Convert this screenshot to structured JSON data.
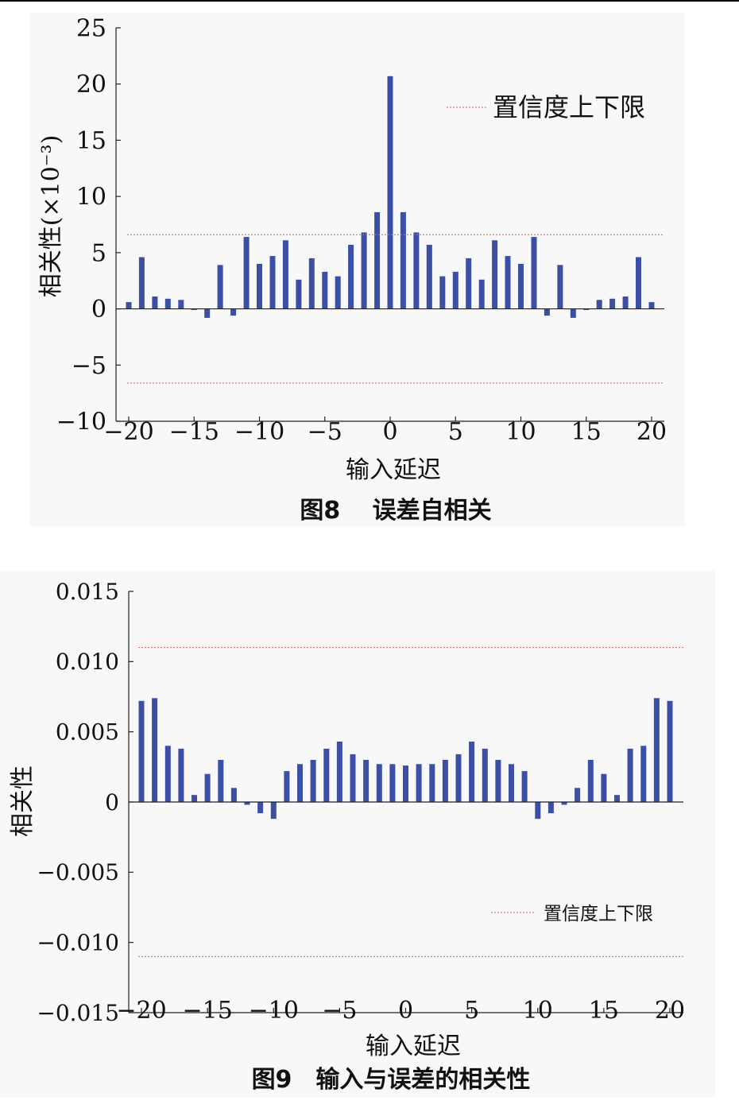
{
  "colors": {
    "bar": "#3b4fa6",
    "confidence": "#e06060",
    "axis": "#222222"
  },
  "chart_data": [
    {
      "type": "bar",
      "caption": "图8　 误差自相关",
      "xlabel": "输入延迟",
      "ylabel": "相关性(×10⁻³)",
      "legend": "置信度上下限",
      "legend_position": "top-right",
      "xlim": [
        -20,
        20
      ],
      "ylim": [
        -10,
        25
      ],
      "xticks": [
        -20,
        -15,
        -10,
        -5,
        0,
        5,
        10,
        15,
        20
      ],
      "xtick_labels": [
        "−20",
        "−15",
        "−10",
        "−5",
        "0",
        "5",
        "10",
        "15",
        "20"
      ],
      "yticks": [
        -10,
        -5,
        0,
        5,
        10,
        15,
        20,
        25
      ],
      "ytick_labels": [
        "−10",
        "−5",
        "0",
        "5",
        "10",
        "15",
        "20",
        "25"
      ],
      "confidence_bounds": [
        6.6,
        -6.6
      ],
      "x": [
        -20,
        -19,
        -18,
        -17,
        -16,
        -15,
        -14,
        -13,
        -12,
        -11,
        -10,
        -9,
        -8,
        -7,
        -6,
        -5,
        -4,
        -3,
        -2,
        -1,
        0,
        1,
        2,
        3,
        4,
        5,
        6,
        7,
        8,
        9,
        10,
        11,
        12,
        13,
        14,
        15,
        16,
        17,
        18,
        19,
        20
      ],
      "values": [
        0.6,
        4.6,
        1.1,
        0.9,
        0.8,
        -0.1,
        -0.8,
        3.9,
        -0.6,
        6.4,
        4.0,
        4.7,
        6.1,
        2.6,
        4.5,
        3.3,
        2.9,
        5.7,
        6.8,
        8.6,
        20.7,
        8.6,
        6.8,
        5.7,
        2.9,
        3.3,
        4.5,
        2.6,
        6.1,
        4.7,
        4.0,
        6.4,
        -0.6,
        3.9,
        -0.8,
        -0.1,
        0.8,
        0.9,
        1.1,
        4.6,
        0.6
      ]
    },
    {
      "type": "bar",
      "caption": "图9　输入与误差的相关性",
      "xlabel": "输入延迟",
      "ylabel": "相关性",
      "legend": "置信度上下限",
      "legend_position": "bottom-right",
      "xlim": [
        -20,
        20
      ],
      "ylim": [
        -0.015,
        0.015
      ],
      "xticks": [
        -20,
        -15,
        -10,
        -5,
        0,
        5,
        10,
        15,
        20
      ],
      "xtick_labels": [
        "−20",
        "−15",
        "−10",
        "−5",
        "0",
        "5",
        "10",
        "15",
        "20"
      ],
      "yticks": [
        -0.015,
        -0.01,
        -0.005,
        0,
        0.005,
        0.01,
        0.015
      ],
      "ytick_labels": [
        "−0.015",
        "−0.010",
        "−0.005",
        "0",
        "0.005",
        "0.010",
        "0.015"
      ],
      "confidence_bounds": [
        0.011,
        -0.011
      ],
      "x": [
        -20,
        -19,
        -18,
        -17,
        -16,
        -15,
        -14,
        -13,
        -12,
        -11,
        -10,
        -9,
        -8,
        -7,
        -6,
        -5,
        -4,
        -3,
        -2,
        -1,
        0,
        1,
        2,
        3,
        4,
        5,
        6,
        7,
        8,
        9,
        10,
        11,
        12,
        13,
        14,
        15,
        16,
        17,
        18,
        19,
        20
      ],
      "values": [
        0.0072,
        0.0074,
        0.004,
        0.0038,
        0.0005,
        0.002,
        0.003,
        0.001,
        -0.0002,
        -0.0008,
        -0.0012,
        0.0022,
        0.0027,
        0.003,
        0.0038,
        0.0043,
        0.0034,
        0.003,
        0.0027,
        0.0027,
        0.0026,
        0.0027,
        0.0027,
        0.003,
        0.0034,
        0.0043,
        0.0038,
        0.003,
        0.0027,
        0.0022,
        -0.0012,
        -0.0008,
        -0.0002,
        0.001,
        0.003,
        0.002,
        0.0005,
        0.0038,
        0.004,
        0.0074,
        0.0072
      ]
    }
  ]
}
